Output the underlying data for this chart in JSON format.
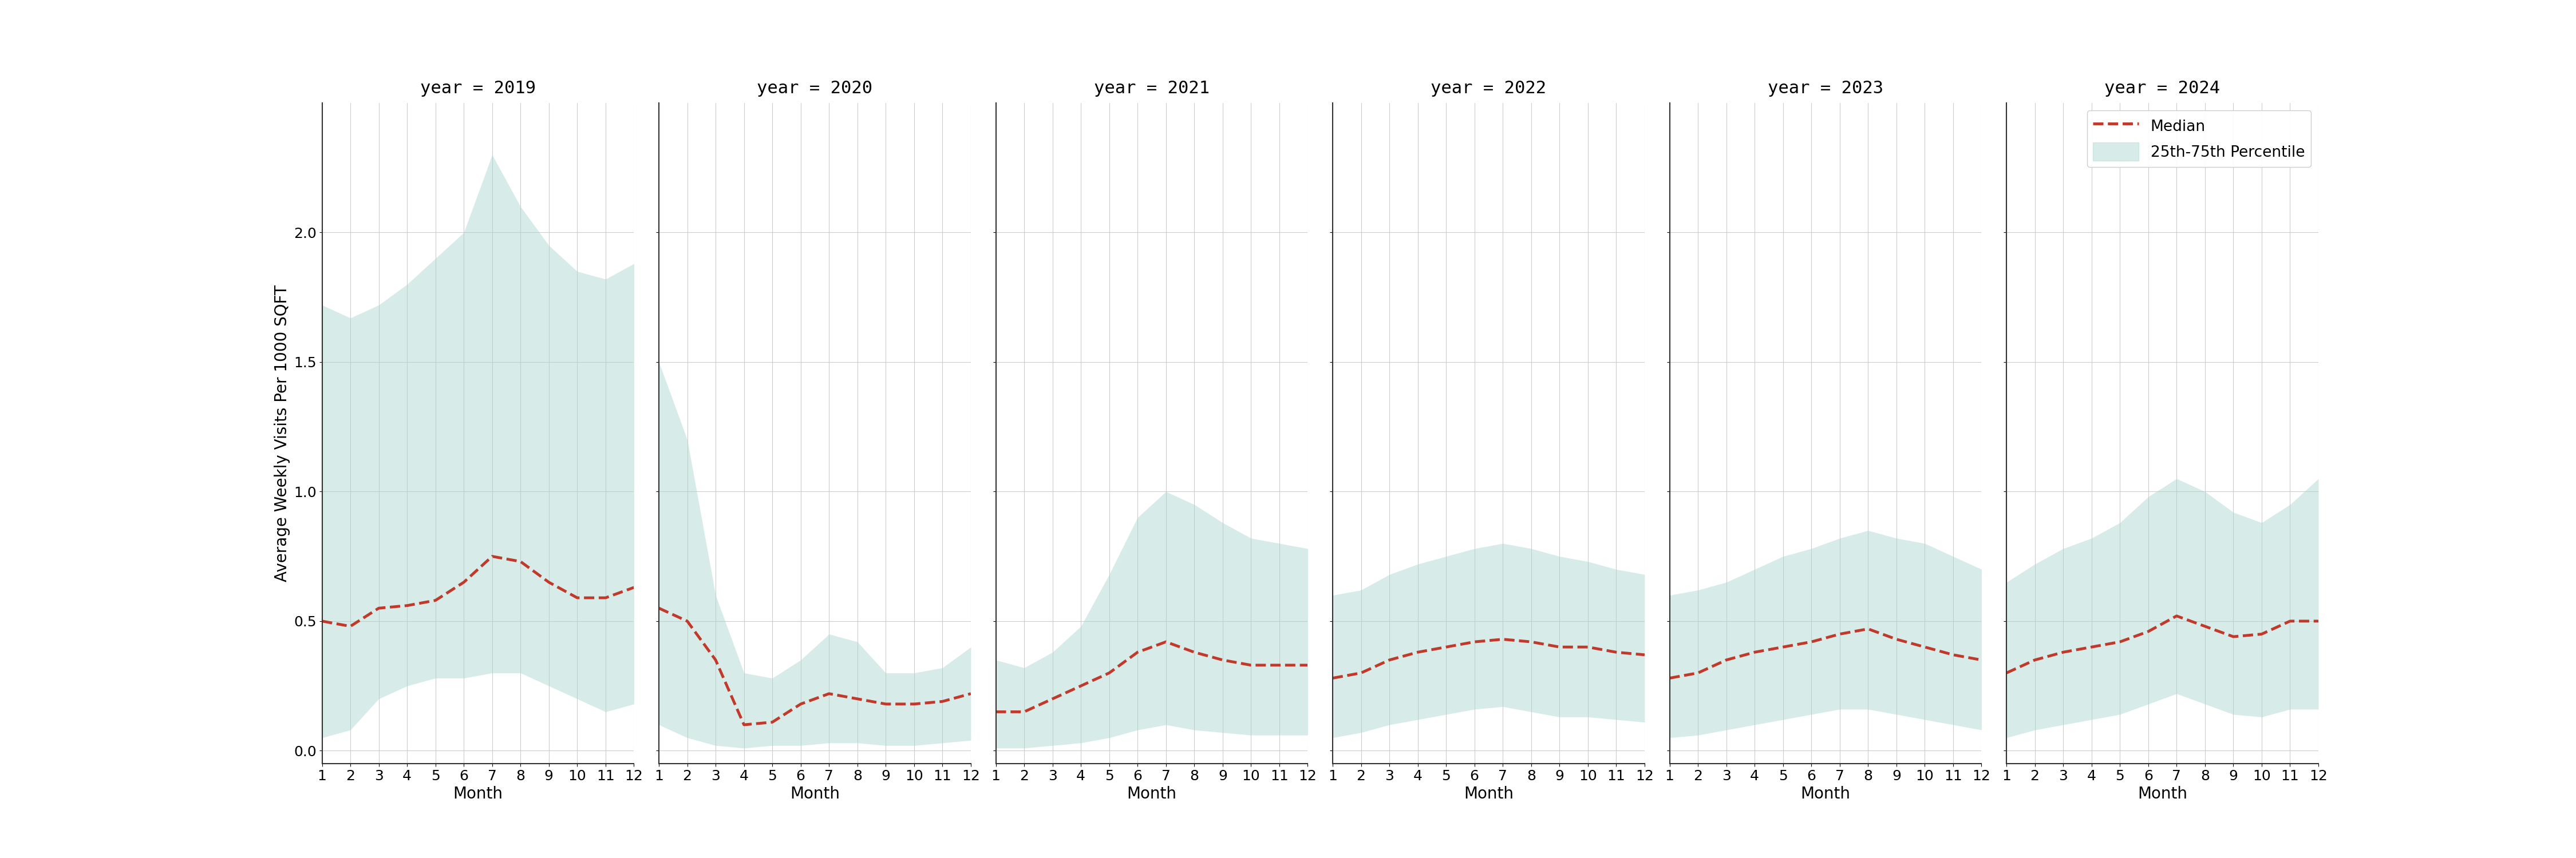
{
  "years": [
    2019,
    2020,
    2021,
    2022,
    2023,
    2024
  ],
  "months": [
    1,
    2,
    3,
    4,
    5,
    6,
    7,
    8,
    9,
    10,
    11,
    12
  ],
  "ylabel": "Average Weekly Visits Per 1000 SQFT",
  "xlabel": "Month",
  "ylim": [
    -0.05,
    2.5
  ],
  "yticks": [
    0.0,
    0.5,
    1.0,
    1.5,
    2.0
  ],
  "fill_color": "#a8d5cc",
  "fill_alpha": 0.45,
  "line_color": "#c0392b",
  "line_style": "--",
  "line_width": 3.5,
  "background_color": "#ffffff",
  "grid_color": "#cccccc",
  "median": {
    "2019": [
      0.5,
      0.48,
      0.55,
      0.56,
      0.58,
      0.65,
      0.75,
      0.73,
      0.65,
      0.59,
      0.59,
      0.63
    ],
    "2020": [
      0.55,
      0.5,
      0.35,
      0.1,
      0.11,
      0.18,
      0.22,
      0.2,
      0.18,
      0.18,
      0.19,
      0.22
    ],
    "2021": [
      0.15,
      0.15,
      0.2,
      0.25,
      0.3,
      0.38,
      0.42,
      0.38,
      0.35,
      0.33,
      0.33,
      0.33
    ],
    "2022": [
      0.28,
      0.3,
      0.35,
      0.38,
      0.4,
      0.42,
      0.43,
      0.42,
      0.4,
      0.4,
      0.38,
      0.37
    ],
    "2023": [
      0.28,
      0.3,
      0.35,
      0.38,
      0.4,
      0.42,
      0.45,
      0.47,
      0.43,
      0.4,
      0.37,
      0.35
    ],
    "2024": [
      0.3,
      0.35,
      0.38,
      0.4,
      0.42,
      0.46,
      0.52,
      0.48,
      0.44,
      0.45,
      0.5,
      0.5
    ]
  },
  "p25": {
    "2019": [
      0.05,
      0.08,
      0.2,
      0.25,
      0.28,
      0.28,
      0.3,
      0.3,
      0.25,
      0.2,
      0.15,
      0.18
    ],
    "2020": [
      0.1,
      0.05,
      0.02,
      0.01,
      0.02,
      0.02,
      0.03,
      0.03,
      0.02,
      0.02,
      0.03,
      0.04
    ],
    "2021": [
      0.01,
      0.01,
      0.02,
      0.03,
      0.05,
      0.08,
      0.1,
      0.08,
      0.07,
      0.06,
      0.06,
      0.06
    ],
    "2022": [
      0.05,
      0.07,
      0.1,
      0.12,
      0.14,
      0.16,
      0.17,
      0.15,
      0.13,
      0.13,
      0.12,
      0.11
    ],
    "2023": [
      0.05,
      0.06,
      0.08,
      0.1,
      0.12,
      0.14,
      0.16,
      0.16,
      0.14,
      0.12,
      0.1,
      0.08
    ],
    "2024": [
      0.05,
      0.08,
      0.1,
      0.12,
      0.14,
      0.18,
      0.22,
      0.18,
      0.14,
      0.13,
      0.16,
      0.16
    ]
  },
  "p75": {
    "2019": [
      1.72,
      1.67,
      1.72,
      1.8,
      1.9,
      2.0,
      2.3,
      2.1,
      1.95,
      1.85,
      1.82,
      1.88
    ],
    "2020": [
      1.5,
      1.2,
      0.6,
      0.3,
      0.28,
      0.35,
      0.45,
      0.42,
      0.3,
      0.3,
      0.32,
      0.4
    ],
    "2021": [
      0.35,
      0.32,
      0.38,
      0.48,
      0.68,
      0.9,
      1.0,
      0.95,
      0.88,
      0.82,
      0.8,
      0.78
    ],
    "2022": [
      0.6,
      0.62,
      0.68,
      0.72,
      0.75,
      0.78,
      0.8,
      0.78,
      0.75,
      0.73,
      0.7,
      0.68
    ],
    "2023": [
      0.6,
      0.62,
      0.65,
      0.7,
      0.75,
      0.78,
      0.82,
      0.85,
      0.82,
      0.8,
      0.75,
      0.7
    ],
    "2024": [
      0.65,
      0.72,
      0.78,
      0.82,
      0.88,
      0.98,
      1.05,
      1.0,
      0.92,
      0.88,
      0.95,
      1.05
    ]
  },
  "title_fontsize": 22,
  "axis_fontsize": 20,
  "tick_fontsize": 18,
  "legend_fontsize": 19
}
